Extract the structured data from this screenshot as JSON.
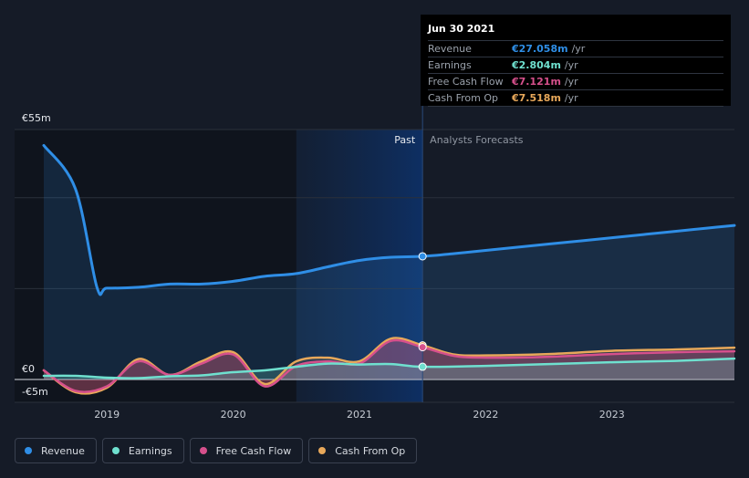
{
  "tooltip": {
    "date": "Jun 30 2021",
    "rows": [
      {
        "label": "Revenue",
        "value": "€27.058m",
        "unit": "/yr",
        "color": "#2f8ee6"
      },
      {
        "label": "Earnings",
        "value": "€2.804m",
        "unit": "/yr",
        "color": "#6fe0cf"
      },
      {
        "label": "Free Cash Flow",
        "value": "€7.121m",
        "unit": "/yr",
        "color": "#d6508c"
      },
      {
        "label": "Cash From Op",
        "value": "€7.518m",
        "unit": "/yr",
        "color": "#e8a85a"
      }
    ]
  },
  "legend": [
    {
      "label": "Revenue",
      "color": "#2f8ee6"
    },
    {
      "label": "Earnings",
      "color": "#6fe0cf"
    },
    {
      "label": "Free Cash Flow",
      "color": "#d6508c"
    },
    {
      "label": "Cash From Op",
      "color": "#e8a85a"
    }
  ],
  "chart_data": {
    "type": "line",
    "title": "",
    "xlabel": "",
    "ylabel": "",
    "y_tick_labels": [
      "€55m",
      "€0",
      "-€5m"
    ],
    "ylim": [
      -5,
      55
    ],
    "xlim": [
      2018.5,
      2023.97
    ],
    "x_ticks": [
      2019,
      2020,
      2021,
      2022,
      2023
    ],
    "x_tick_labels": [
      "2019",
      "2020",
      "2021",
      "2022",
      "2023"
    ],
    "past_label": "Past",
    "forecast_label": "Analysts Forecasts",
    "past_end": 2021.5,
    "highlight_start": 2020.5,
    "series": [
      {
        "name": "Revenue",
        "color": "#2f8ee6",
        "x": [
          2018.5,
          2018.75,
          2018.92,
          2019.0,
          2019.25,
          2019.5,
          2019.75,
          2020.0,
          2020.25,
          2020.5,
          2020.75,
          2021.0,
          2021.25,
          2021.5,
          2021.75,
          2022.0,
          2022.25,
          2022.5,
          2022.75,
          2023.0,
          2023.25,
          2023.5,
          2023.75,
          2023.97
        ],
        "values": [
          51.5,
          42,
          20.4,
          20.1,
          20.3,
          21,
          21,
          21.6,
          22.7,
          23.3,
          24.8,
          26.2,
          26.9,
          27.1,
          27.7,
          28.4,
          29.1,
          29.8,
          30.5,
          31.2,
          31.9,
          32.6,
          33.3,
          33.9
        ]
      },
      {
        "name": "Earnings",
        "color": "#6fe0cf",
        "x": [
          2018.5,
          2018.75,
          2019.0,
          2019.25,
          2019.5,
          2019.75,
          2020.0,
          2020.25,
          2020.5,
          2020.75,
          2021.0,
          2021.25,
          2021.5,
          2022.0,
          2022.5,
          2023.0,
          2023.5,
          2023.97
        ],
        "values": [
          0.8,
          0.8,
          0.4,
          0.3,
          0.7,
          0.9,
          1.6,
          2,
          2.8,
          3.5,
          3.3,
          3.4,
          2.8,
          3,
          3.4,
          3.8,
          4.1,
          4.6
        ]
      },
      {
        "name": "Free Cash Flow",
        "color": "#d6508c",
        "x": [
          2018.5,
          2018.75,
          2019.0,
          2019.25,
          2019.5,
          2019.75,
          2020.0,
          2020.25,
          2020.5,
          2020.75,
          2021.0,
          2021.25,
          2021.5,
          2021.75,
          2022.0,
          2022.5,
          2023.0,
          2023.5,
          2023.97
        ],
        "values": [
          2,
          -2.5,
          -1.5,
          4,
          1,
          3.5,
          5.5,
          -1.5,
          3,
          4,
          3.5,
          8.5,
          7.1,
          5.2,
          4.8,
          5,
          5.6,
          6,
          6.2
        ]
      },
      {
        "name": "Cash From Op",
        "color": "#e8a85a",
        "x": [
          2018.5,
          2018.75,
          2019.0,
          2019.25,
          2019.5,
          2019.75,
          2020.0,
          2020.25,
          2020.5,
          2020.75,
          2021.0,
          2021.25,
          2021.5,
          2021.75,
          2022.0,
          2022.5,
          2023.0,
          2023.5,
          2023.97
        ],
        "values": [
          2,
          -2.8,
          -1.8,
          4.5,
          1,
          4,
          6,
          -1,
          4,
          4.8,
          4,
          9,
          7.5,
          5.5,
          5.3,
          5.6,
          6.3,
          6.6,
          7
        ]
      }
    ]
  }
}
